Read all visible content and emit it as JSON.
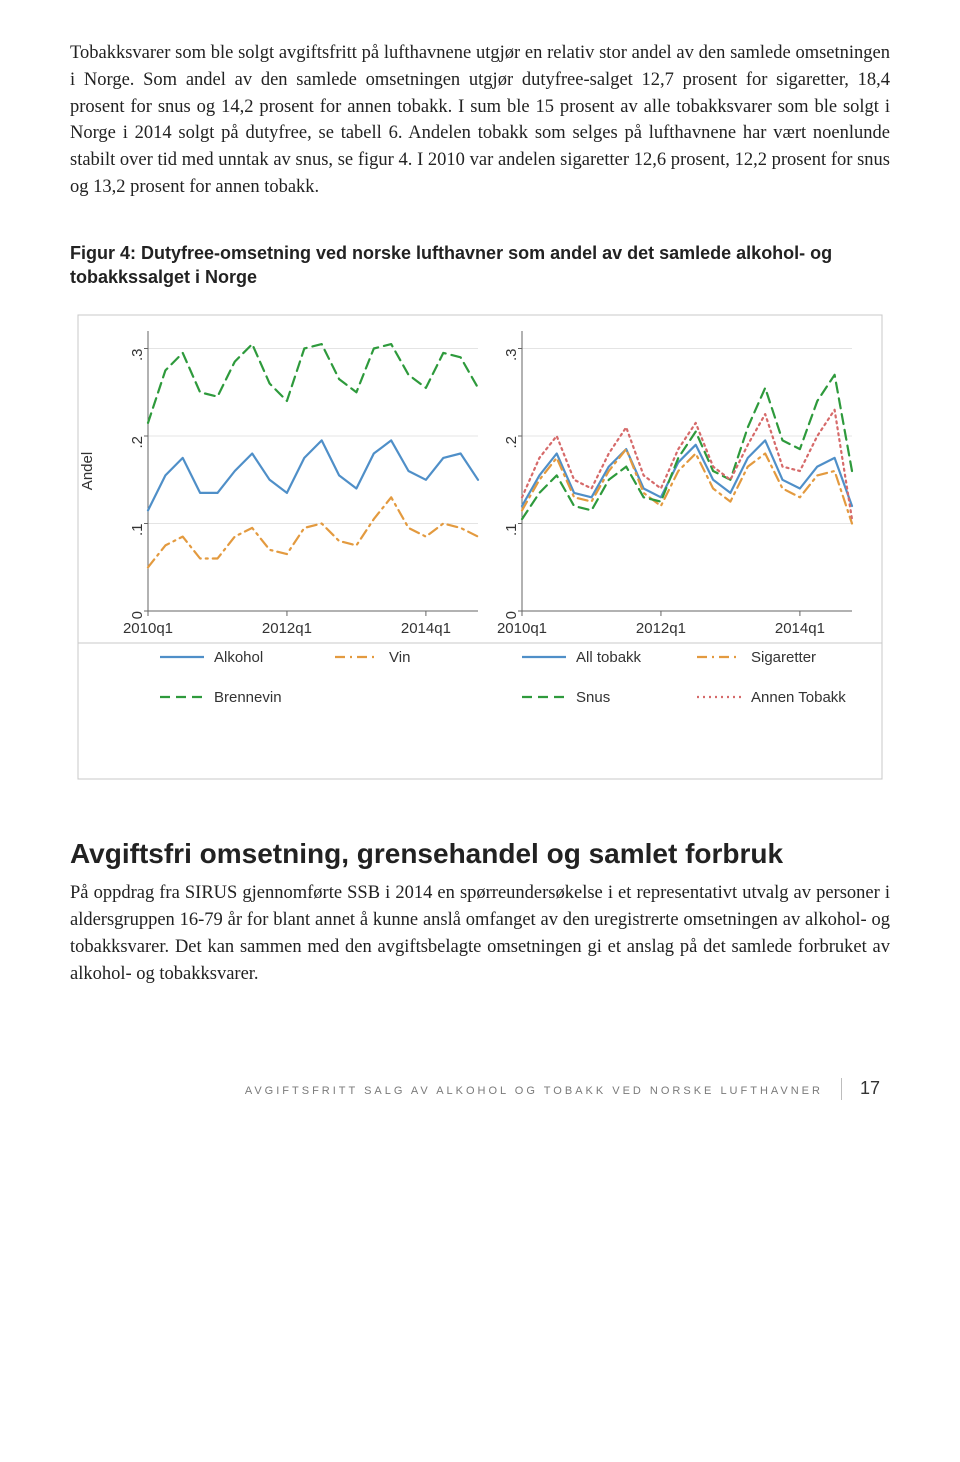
{
  "para1": "Tobakksvarer som ble solgt avgiftsfritt på lufthavnene utgjør en relativ stor andel av den samlede omsetningen i Norge. Som andel av den samlede omsetningen utgjør dutyfree-salget 12,7 prosent for sigaretter, 18,4 prosent for snus og 14,2 prosent for annen tobakk. I sum ble 15 prosent av alle tobakksvarer som ble solgt i Norge i 2014 solgt på dutyfree, se tabell 6. Andelen tobakk som selges på lufthavnene har vært noenlunde stabilt over tid med unntak av snus, se figur 4. I 2010 var andelen sigaretter 12,6 prosent, 12,2 prosent for snus og 13,2 prosent for annen tobakk.",
  "figure_caption": "Figur 4: Dutyfree-omsetning ved norske lufthavner som andel av det samlede alkohol- og tobakkssalget i Norge",
  "section_heading": "Avgiftsfri omsetning, grensehandel og samlet forbruk",
  "para2": "På oppdrag fra SIRUS gjennomførte SSB i 2014 en spørreundersøkelse i et representativt utvalg av personer i aldersgruppen 16-79 år for blant annet å kunne anslå omfanget av den uregistrerte omsetningen av alkohol- og tobakksvarer. Det kan sammen med den avgiftsbelagte omsetningen gi et anslag på det samlede forbruket av alkohol- og tobakksvarer.",
  "footer_title": "AVGIFTSFRITT SALG AV ALKOHOL OG TOBAKK VED NORSKE LUFTHAVNER",
  "footer_page": "17",
  "chart": {
    "type": "line",
    "ylabel": "Andel",
    "panels": 2,
    "x_categories": [
      "2010q1",
      "2010q2",
      "2010q3",
      "2010q4",
      "2011q1",
      "2011q2",
      "2011q3",
      "2011q4",
      "2012q1",
      "2012q2",
      "2012q3",
      "2012q4",
      "2013q1",
      "2013q2",
      "2013q3",
      "2013q4",
      "2014q1",
      "2014q2",
      "2014q3",
      "2014q4"
    ],
    "x_ticks_left": [
      "2010q1",
      "2012q1",
      "2014q1"
    ],
    "x_ticks_right": [
      "2010q1",
      "2012q1",
      "2014q1"
    ],
    "y_ticks": [
      "0",
      ".1",
      ".2",
      ".3"
    ],
    "ylim": [
      0,
      0.32
    ],
    "label_fontsize": 15,
    "tick_fontsize": 15,
    "legend_fontsize": 15,
    "border_color": "#c8c8c8",
    "grid_color": "#e4e4e4",
    "grid_on": true,
    "background_color": "#ffffff",
    "line_width": 2.2,
    "left": {
      "series": [
        {
          "name": "Alkohol",
          "color": "#4f8fc8",
          "dash": "none",
          "values": [
            0.115,
            0.155,
            0.175,
            0.135,
            0.135,
            0.16,
            0.18,
            0.15,
            0.135,
            0.175,
            0.195,
            0.155,
            0.14,
            0.18,
            0.195,
            0.16,
            0.15,
            0.175,
            0.18,
            0.15
          ]
        },
        {
          "name": "Vin",
          "color": "#e39a3f",
          "dash": "dashdot",
          "values": [
            0.05,
            0.075,
            0.085,
            0.06,
            0.06,
            0.085,
            0.095,
            0.07,
            0.065,
            0.095,
            0.1,
            0.08,
            0.075,
            0.105,
            0.13,
            0.095,
            0.085,
            0.1,
            0.095,
            0.085
          ]
        },
        {
          "name": "Brennevin",
          "color": "#2e9a3c",
          "dash": "dash",
          "values": [
            0.215,
            0.275,
            0.295,
            0.25,
            0.245,
            0.285,
            0.305,
            0.26,
            0.24,
            0.3,
            0.305,
            0.265,
            0.25,
            0.3,
            0.305,
            0.27,
            0.255,
            0.295,
            0.29,
            0.255
          ]
        }
      ]
    },
    "right": {
      "series": [
        {
          "name": "All tobakk",
          "color": "#4f8fc8",
          "dash": "none",
          "values": [
            0.12,
            0.155,
            0.18,
            0.135,
            0.13,
            0.165,
            0.185,
            0.14,
            0.13,
            0.17,
            0.19,
            0.15,
            0.135,
            0.175,
            0.195,
            0.15,
            0.14,
            0.165,
            0.175,
            0.12
          ]
        },
        {
          "name": "Sigaretter",
          "color": "#e39a3f",
          "dash": "dashdot",
          "values": [
            0.115,
            0.15,
            0.175,
            0.13,
            0.125,
            0.16,
            0.185,
            0.135,
            0.12,
            0.16,
            0.18,
            0.14,
            0.125,
            0.165,
            0.18,
            0.14,
            0.13,
            0.155,
            0.16,
            0.1
          ]
        },
        {
          "name": "Snus",
          "color": "#2e9a3c",
          "dash": "dash",
          "values": [
            0.105,
            0.135,
            0.155,
            0.12,
            0.115,
            0.15,
            0.165,
            0.13,
            0.125,
            0.175,
            0.205,
            0.16,
            0.15,
            0.21,
            0.255,
            0.195,
            0.185,
            0.24,
            0.27,
            0.16
          ]
        },
        {
          "name": "Annen Tobakk",
          "color": "#d66a6a",
          "dash": "dot",
          "values": [
            0.13,
            0.175,
            0.2,
            0.15,
            0.14,
            0.18,
            0.21,
            0.155,
            0.14,
            0.185,
            0.215,
            0.165,
            0.15,
            0.19,
            0.225,
            0.165,
            0.16,
            0.2,
            0.23,
            0.105
          ]
        }
      ]
    },
    "legend": {
      "left": [
        {
          "label": "Alkohol",
          "color": "#4f8fc8",
          "dash": "none"
        },
        {
          "label": "Vin",
          "color": "#e39a3f",
          "dash": "dashdot"
        },
        {
          "label": "Brennevin",
          "color": "#2e9a3c",
          "dash": "dash"
        }
      ],
      "right": [
        {
          "label": "All tobakk",
          "color": "#4f8fc8",
          "dash": "none"
        },
        {
          "label": "Sigaretter",
          "color": "#e39a3f",
          "dash": "dashdot"
        },
        {
          "label": "Snus",
          "color": "#2e9a3c",
          "dash": "dash"
        },
        {
          "label": "Annen Tobakk",
          "color": "#d66a6a",
          "dash": "dot"
        }
      ]
    }
  }
}
